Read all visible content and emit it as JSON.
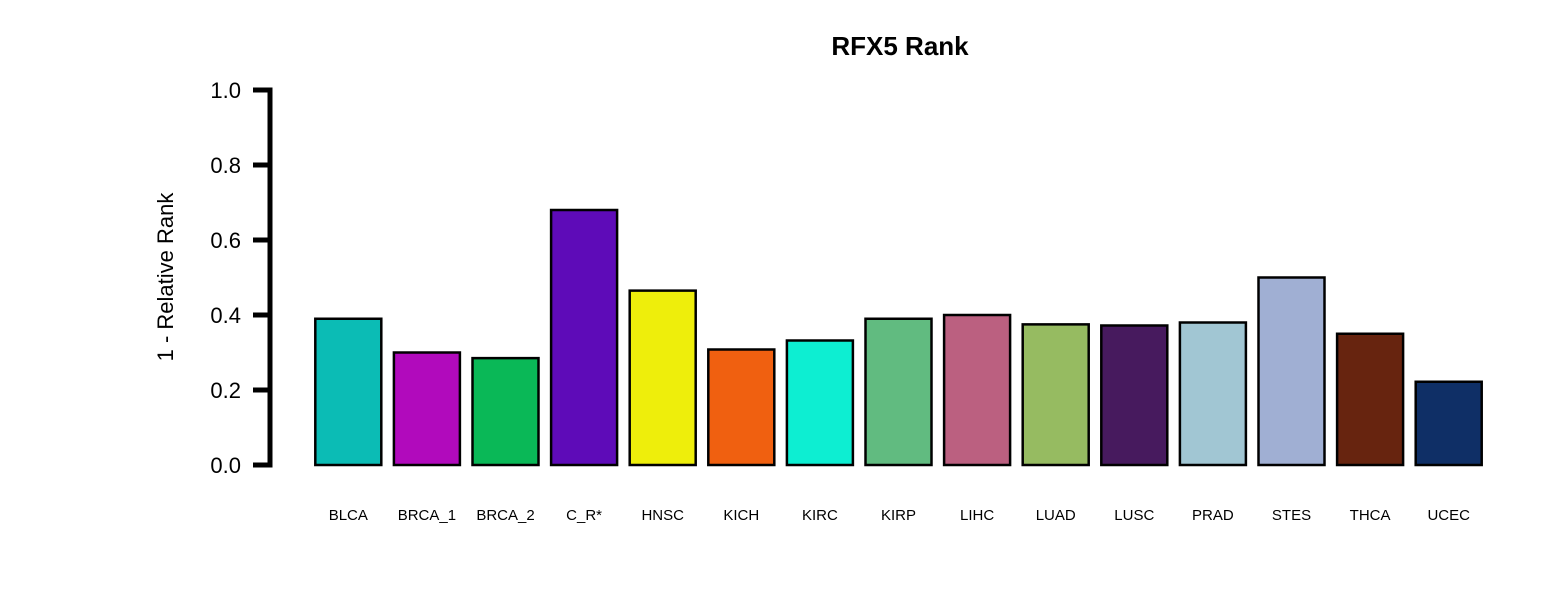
{
  "chart_data": {
    "type": "bar",
    "title": "RFX5 Rank",
    "xlabel": "",
    "ylabel": "1 - Relative Rank",
    "ylim": [
      0,
      1.0
    ],
    "yticks": [
      "0.0",
      "0.2",
      "0.4",
      "0.6",
      "0.8",
      "1.0"
    ],
    "grid": false,
    "legend": "none",
    "categories": [
      "BLCA",
      "BRCA_1",
      "BRCA_2",
      "C_R*",
      "HNSC",
      "KICH",
      "KIRC",
      "KIRP",
      "LIHC",
      "LUAD",
      "LUSC",
      "PRAD",
      "STES",
      "THCA",
      "UCEC"
    ],
    "values": [
      0.39,
      0.3,
      0.285,
      0.68,
      0.465,
      0.308,
      0.332,
      0.39,
      0.4,
      0.375,
      0.372,
      0.38,
      0.5,
      0.35,
      0.222
    ],
    "colors": [
      "#0BBCB5",
      "#B10ABC",
      "#0AB857",
      "#5E0BB8",
      "#EEEE0B",
      "#F06010",
      "#0DEED2",
      "#61BB80",
      "#BB6080",
      "#96BB61",
      "#471A5E",
      "#A1C6D3",
      "#A0AFD3",
      "#67240F",
      "#0F2F66"
    ]
  }
}
